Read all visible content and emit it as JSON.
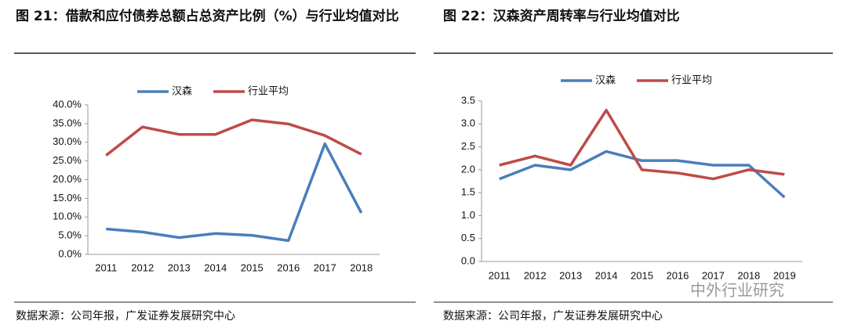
{
  "chart_data": [
    {
      "type": "line",
      "title": "图 21：借款和应付债券总额占总资产比例（%）与行业均值对比",
      "source": "数据来源：公司年报，广发证券发展研究中心",
      "categories": [
        "2011",
        "2012",
        "2013",
        "2014",
        "2015",
        "2016",
        "2017",
        "2018"
      ],
      "series": [
        {
          "name": "汉森",
          "color": "#4a7ebb",
          "values": [
            6.8,
            6.0,
            4.5,
            5.6,
            5.1,
            3.7,
            29.6,
            11.1
          ]
        },
        {
          "name": "行业平均",
          "color": "#be4b48",
          "values": [
            26.5,
            34.1,
            32.1,
            32.1,
            36.0,
            34.9,
            31.8,
            26.8
          ]
        }
      ],
      "ylim": [
        0,
        40
      ],
      "yticks": [
        {
          "value": 0,
          "label": "0.0%"
        },
        {
          "value": 5,
          "label": "5.0%"
        },
        {
          "value": 10,
          "label": "10.0%"
        },
        {
          "value": 15,
          "label": "15.0%"
        },
        {
          "value": 20,
          "label": "20.0%"
        },
        {
          "value": 25,
          "label": "25.0%"
        },
        {
          "value": 30,
          "label": "30.0%"
        },
        {
          "value": 35,
          "label": "35.0%"
        },
        {
          "value": 40,
          "label": "40.0%"
        }
      ],
      "grid": false,
      "legend": "top"
    },
    {
      "type": "line",
      "title": "图 22：汉森资产周转率与行业均值对比",
      "source": "数据来源：公司年报，广发证券发展研究中心",
      "categories": [
        "2011",
        "2012",
        "2013",
        "2014",
        "2015",
        "2016",
        "2017",
        "2018",
        "2019"
      ],
      "series": [
        {
          "name": "汉森",
          "color": "#4a7ebb",
          "values": [
            1.8,
            2.1,
            2.0,
            2.4,
            2.2,
            2.2,
            2.1,
            2.1,
            1.4
          ]
        },
        {
          "name": "行业平均",
          "color": "#be4b48",
          "values": [
            2.1,
            2.3,
            2.1,
            3.3,
            2.0,
            1.93,
            1.8,
            2.0,
            1.9
          ]
        }
      ],
      "ylim": [
        0,
        3.5
      ],
      "yticks": [
        {
          "value": 0,
          "label": "0.0"
        },
        0.5,
        {
          "value": 1,
          "label": "1.0"
        },
        1.5,
        {
          "value": 2,
          "label": "2.0"
        },
        2.5,
        {
          "value": 3,
          "label": "3.0"
        },
        3.5
      ],
      "grid": false,
      "legend": "top"
    }
  ],
  "watermark": "中外行业研究"
}
